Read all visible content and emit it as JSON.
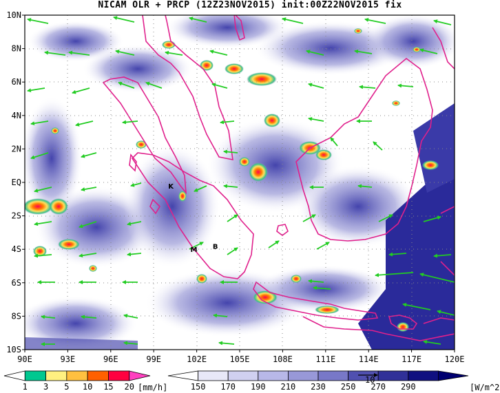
{
  "title": "NICAM OLR + PRCP (12Z23NOV2015) init:00Z22NOV2015 fix",
  "lon_labels": [
    "90E",
    "93E",
    "96E",
    "99E",
    "102E",
    "105E",
    "108E",
    "111E",
    "114E",
    "117E",
    "120E"
  ],
  "lat_labels": [
    "10N",
    "8N",
    "6N",
    "4N",
    "2N",
    "EQ",
    "2S",
    "4S",
    "6S",
    "8S",
    "10S"
  ],
  "station_markers": [
    {
      "text": "K",
      "lon": 100.2,
      "lat": -0.2
    },
    {
      "text": "M",
      "lon": 101.8,
      "lat": -4.0
    },
    {
      "text": "B",
      "lon": 103.3,
      "lat": -3.8
    }
  ],
  "precip_colorbar": {
    "labels": [
      "1",
      "3",
      "5",
      "10",
      "15",
      "20"
    ],
    "unit": "[mm/h]",
    "colors": [
      "#a0a0a0",
      "#00c890",
      "#fff080",
      "#ffc040",
      "#ff6000",
      "#ff0040",
      "#ff40c0"
    ]
  },
  "olr_colorbar": {
    "labels": [
      "150",
      "170",
      "190",
      "210",
      "230",
      "250",
      "270",
      "290"
    ],
    "unit": "[W/m^2]",
    "colors": [
      "#ffffff",
      "#e8e8f8",
      "#d0d0f0",
      "#b8b8e8",
      "#9898d8",
      "#7878c8",
      "#5050b0",
      "#303098",
      "#101080",
      "#000070"
    ],
    "vector_ref": "10"
  },
  "colors": {
    "ocean": "#2a2a9a",
    "coast": "#e0208c",
    "wind": "#22cc22",
    "grid": "#888888"
  }
}
